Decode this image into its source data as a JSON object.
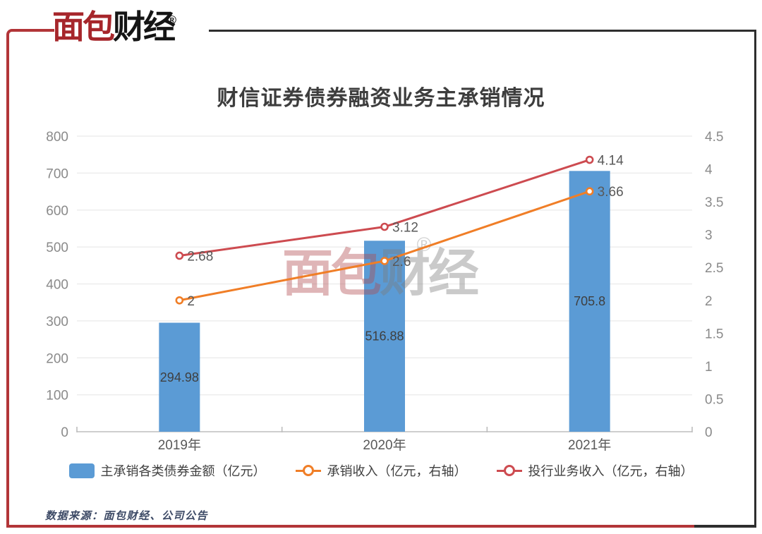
{
  "header": {
    "logo_red": "面包",
    "logo_dark": "财经",
    "registered": "®"
  },
  "chart_data": {
    "type": "combo-bar-line",
    "title": "财信证券债券融资业务主承销情况",
    "categories": [
      "2019年",
      "2020年",
      "2021年"
    ],
    "series": [
      {
        "name": "主承销各类债券金额（亿元）",
        "type": "bar",
        "axis": "left",
        "color": "#5B9BD5",
        "values": [
          294.98,
          516.88,
          705.8
        ],
        "labels": [
          "294.98",
          "516.88",
          "705.8"
        ]
      },
      {
        "name": "承销收入（亿元，右轴）",
        "type": "line",
        "axis": "right",
        "color": "#F07E27",
        "values": [
          2,
          2.6,
          3.66
        ],
        "labels": [
          "2",
          "2.6",
          "3.66"
        ]
      },
      {
        "name": "投行业务收入（亿元，右轴）",
        "type": "line",
        "axis": "right",
        "color": "#CD4B50",
        "values": [
          2.68,
          3.12,
          4.14
        ],
        "labels": [
          "2.68",
          "3.12",
          "4.14"
        ]
      }
    ],
    "left_axis": {
      "min": 0,
      "max": 800,
      "step": 100,
      "ticks": [
        "0",
        "100",
        "200",
        "300",
        "400",
        "500",
        "600",
        "700",
        "800"
      ]
    },
    "right_axis": {
      "min": 0,
      "max": 4.5,
      "step": 0.5,
      "ticks": [
        "0",
        "0.5",
        "1",
        "1.5",
        "2",
        "2.5",
        "3",
        "3.5",
        "4",
        "4.5"
      ]
    },
    "grid": true,
    "legend_position": "bottom"
  },
  "watermark": {
    "text_red": "面包",
    "text_dark": "财经",
    "registered": "®"
  },
  "footer": {
    "source": "数据来源：面包财经、公司公告"
  },
  "style_colors": {
    "frame_red": "#B23538",
    "frame_dark": "#2E2E2E",
    "grid_line": "#EDEDED",
    "axis_line": "#BDBDBD",
    "axis_label": "#8A8A8A",
    "category_label": "#595959",
    "value_label": "#3F3F3F"
  }
}
